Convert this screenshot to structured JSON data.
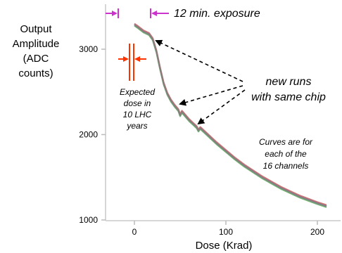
{
  "chart_data": {
    "type": "line",
    "ylabel_lines": [
      "Output",
      "Amplitude",
      "(ADC",
      "counts)"
    ],
    "xlabel": "Dose (Krad)",
    "x_ticks": [
      "0",
      "100",
      "200"
    ],
    "y_ticks": [
      "1000",
      "2000",
      "3000"
    ],
    "xlim": [
      -35,
      220
    ],
    "ylim": [
      1000,
      3450
    ],
    "annotations": {
      "exposure": "12 min. exposure",
      "new_runs": [
        "new runs",
        "with same chip"
      ],
      "expected": [
        "Expected",
        "dose in",
        "10 LHC",
        "years"
      ],
      "curves_note": [
        "Curves are for",
        "each of the",
        "16 channels"
      ]
    },
    "colors": {
      "exposure_marker": "#cc33cc",
      "expected_marker": "#ff3300",
      "arrow": "#000000"
    },
    "series": [
      {
        "color": "#6b6bd6",
        "points": [
          [
            0,
            3290
          ],
          [
            4,
            3260
          ],
          [
            10,
            3210
          ],
          [
            16,
            3180
          ],
          [
            20,
            3120
          ],
          [
            24,
            2980
          ],
          [
            28,
            2780
          ],
          [
            32,
            2600
          ],
          [
            36,
            2480
          ],
          [
            40,
            2400
          ],
          [
            44,
            2340
          ],
          [
            48,
            2290
          ],
          [
            50,
            2230
          ],
          [
            52,
            2270
          ],
          [
            56,
            2220
          ],
          [
            60,
            2170
          ],
          [
            64,
            2130
          ],
          [
            68,
            2090
          ],
          [
            70,
            2050
          ],
          [
            72,
            2080
          ],
          [
            80,
            2000
          ],
          [
            90,
            1900
          ],
          [
            100,
            1810
          ],
          [
            110,
            1720
          ],
          [
            120,
            1640
          ],
          [
            130,
            1570
          ],
          [
            140,
            1500
          ],
          [
            150,
            1440
          ],
          [
            160,
            1380
          ],
          [
            170,
            1330
          ],
          [
            180,
            1280
          ],
          [
            190,
            1240
          ],
          [
            200,
            1200
          ],
          [
            210,
            1165
          ]
        ]
      },
      {
        "color": "#5cad5c",
        "points": [
          [
            0,
            3275
          ],
          [
            4,
            3245
          ],
          [
            10,
            3195
          ],
          [
            16,
            3165
          ],
          [
            20,
            3105
          ],
          [
            24,
            2965
          ],
          [
            28,
            2765
          ],
          [
            32,
            2585
          ],
          [
            36,
            2465
          ],
          [
            40,
            2385
          ],
          [
            44,
            2325
          ],
          [
            48,
            2275
          ],
          [
            50,
            2215
          ],
          [
            52,
            2255
          ],
          [
            56,
            2205
          ],
          [
            60,
            2155
          ],
          [
            64,
            2115
          ],
          [
            68,
            2075
          ],
          [
            70,
            2035
          ],
          [
            72,
            2065
          ],
          [
            80,
            1985
          ],
          [
            90,
            1885
          ],
          [
            100,
            1795
          ],
          [
            110,
            1705
          ],
          [
            120,
            1625
          ],
          [
            130,
            1555
          ],
          [
            140,
            1485
          ],
          [
            150,
            1425
          ],
          [
            160,
            1365
          ],
          [
            170,
            1315
          ],
          [
            180,
            1265
          ],
          [
            190,
            1225
          ],
          [
            200,
            1185
          ],
          [
            210,
            1150
          ]
        ]
      },
      {
        "color": "#c86464",
        "points": [
          [
            0,
            3300
          ],
          [
            4,
            3270
          ],
          [
            10,
            3220
          ],
          [
            16,
            3190
          ],
          [
            20,
            3130
          ],
          [
            24,
            2990
          ],
          [
            28,
            2790
          ],
          [
            32,
            2610
          ],
          [
            36,
            2490
          ],
          [
            40,
            2410
          ],
          [
            44,
            2350
          ],
          [
            48,
            2300
          ],
          [
            50,
            2240
          ],
          [
            52,
            2280
          ],
          [
            56,
            2230
          ],
          [
            60,
            2180
          ],
          [
            64,
            2140
          ],
          [
            68,
            2100
          ],
          [
            70,
            2060
          ],
          [
            72,
            2090
          ],
          [
            80,
            2010
          ],
          [
            90,
            1910
          ],
          [
            100,
            1820
          ],
          [
            110,
            1730
          ],
          [
            120,
            1650
          ],
          [
            130,
            1580
          ],
          [
            140,
            1510
          ],
          [
            150,
            1450
          ],
          [
            160,
            1390
          ],
          [
            170,
            1340
          ],
          [
            180,
            1290
          ],
          [
            190,
            1250
          ],
          [
            200,
            1210
          ],
          [
            210,
            1175
          ]
        ]
      },
      {
        "color": "#808080",
        "points": [
          [
            0,
            3285
          ],
          [
            4,
            3255
          ],
          [
            10,
            3205
          ],
          [
            16,
            3175
          ],
          [
            20,
            3115
          ],
          [
            24,
            2975
          ],
          [
            28,
            2775
          ],
          [
            32,
            2595
          ],
          [
            36,
            2475
          ],
          [
            40,
            2395
          ],
          [
            44,
            2335
          ],
          [
            48,
            2285
          ],
          [
            50,
            2225
          ],
          [
            52,
            2265
          ],
          [
            56,
            2215
          ],
          [
            60,
            2165
          ],
          [
            64,
            2125
          ],
          [
            68,
            2085
          ],
          [
            70,
            2045
          ],
          [
            72,
            2075
          ],
          [
            80,
            1995
          ],
          [
            90,
            1895
          ],
          [
            100,
            1805
          ],
          [
            110,
            1715
          ],
          [
            120,
            1635
          ],
          [
            130,
            1565
          ],
          [
            140,
            1495
          ],
          [
            150,
            1435
          ],
          [
            160,
            1375
          ],
          [
            170,
            1325
          ],
          [
            180,
            1275
          ],
          [
            190,
            1235
          ],
          [
            200,
            1195
          ],
          [
            210,
            1160
          ]
        ]
      }
    ]
  }
}
